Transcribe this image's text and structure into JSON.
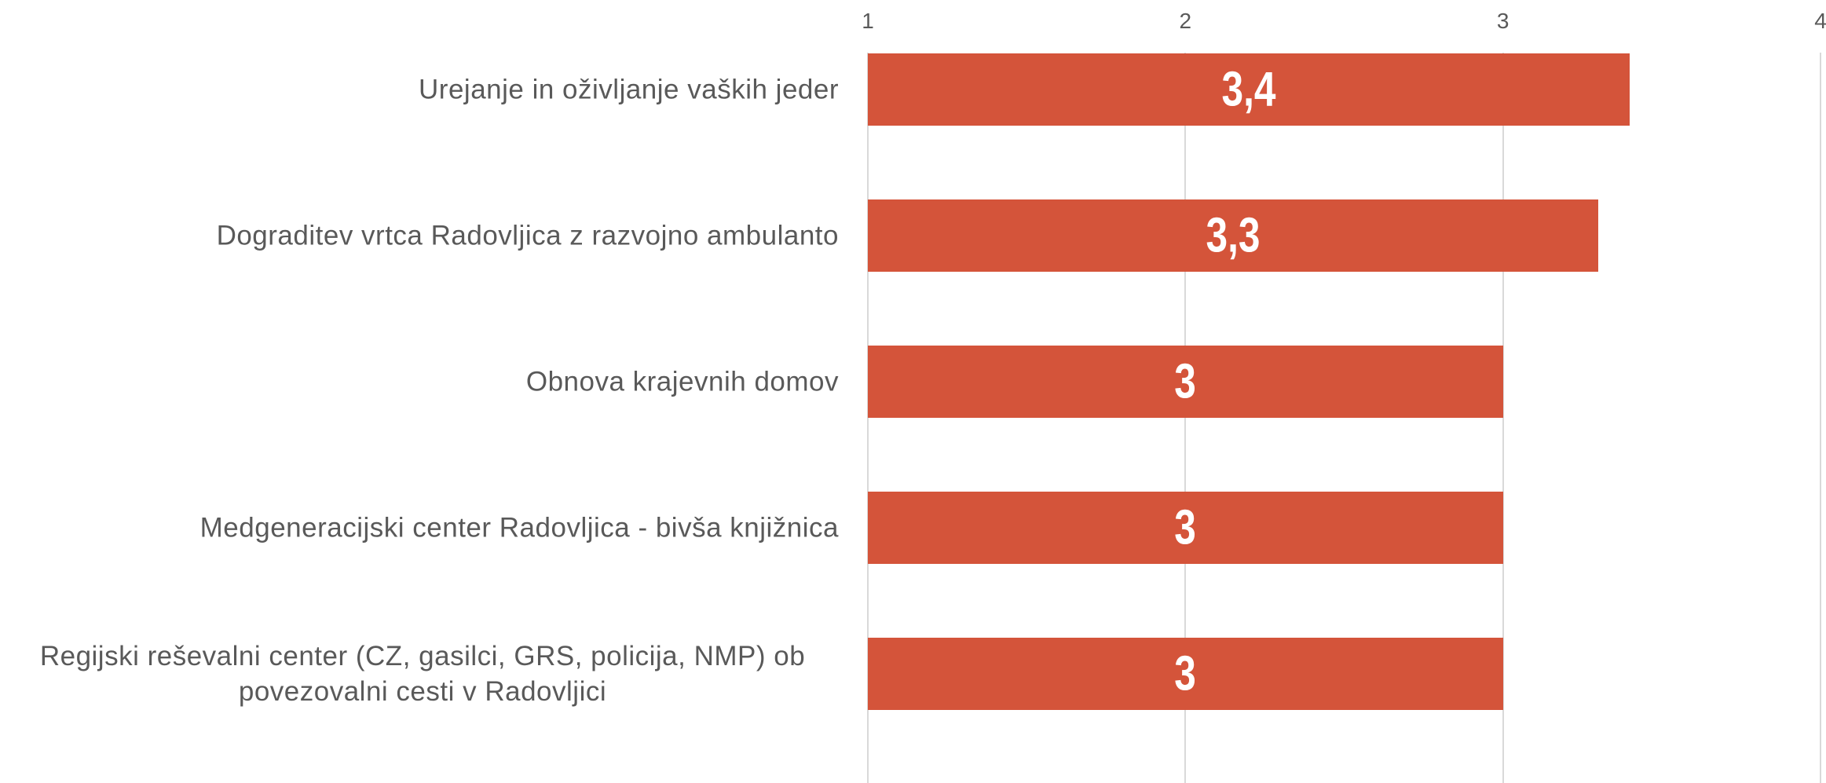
{
  "chart_data": {
    "type": "bar",
    "orientation": "horizontal",
    "categories": [
      "Urejanje in oživljanje vaških jeder",
      "Dograditev vrtca Radovljica z razvojno ambulanto",
      "Obnova krajevnih domov",
      "Medgeneracijski center Radovljica - bivša knjižnica",
      "Regijski reševalni center (CZ, gasilci, GRS, policija, NMP) ob povezovalni cesti v Radovljici"
    ],
    "values": [
      3.4,
      3.3,
      3,
      3,
      3
    ],
    "value_labels": [
      "3,4",
      "3,3",
      "3",
      "3",
      "3"
    ],
    "color": "#d4543a",
    "xlim": [
      1,
      4
    ],
    "xticks": [
      1,
      2,
      3,
      4
    ],
    "grid": true
  }
}
